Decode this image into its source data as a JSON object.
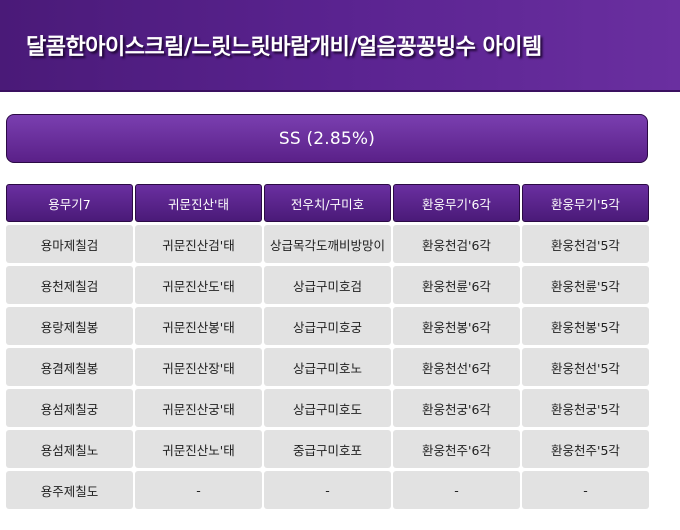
{
  "header": {
    "title": "달콤한아이스크림/느릿느릿바람개비/얼음꽁꽁빙수 아이템"
  },
  "banner": {
    "text": "SS (2.85%)"
  },
  "table": {
    "headers": [
      "용무기7",
      "귀문진산'태",
      "전우치/구미호",
      "환웅무기'6각",
      "환웅무기'5각"
    ],
    "rows": [
      [
        "용마제칠검",
        "귀문진산검'태",
        "상급목각도깨비방망이",
        "환웅천검'6각",
        "환웅천검'5각"
      ],
      [
        "용천제칠검",
        "귀문진산도'태",
        "상급구미호검",
        "환웅천륜'6각",
        "환웅천륜'5각"
      ],
      [
        "용랑제칠봉",
        "귀문진산봉'태",
        "상급구미호궁",
        "환웅천봉'6각",
        "환웅천봉'5각"
      ],
      [
        "용겸제칠봉",
        "귀문진산장'태",
        "상급구미호노",
        "환웅천선'6각",
        "환웅천선'5각"
      ],
      [
        "용섬제칠궁",
        "귀문진산궁'태",
        "상급구미호도",
        "환웅천궁'6각",
        "환웅천궁'5각"
      ],
      [
        "용섬제칠노",
        "귀문진산노'태",
        "중급구미호포",
        "환웅천주'6각",
        "환웅천주'5각"
      ],
      [
        "용주제칠도",
        "-",
        "-",
        "-",
        "-"
      ]
    ]
  },
  "colors": {
    "header_bg": "#4a1a78",
    "accent": "#6a2fa0",
    "cell_bg": "#e2e2e2"
  }
}
